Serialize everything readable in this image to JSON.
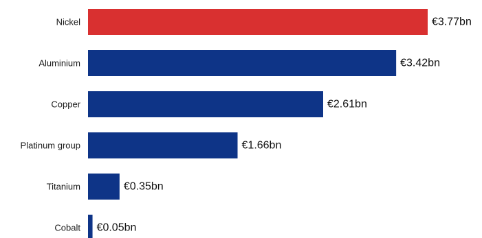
{
  "chart_data": {
    "type": "bar",
    "orientation": "horizontal",
    "categories": [
      "Nickel",
      "Aluminium",
      "Copper",
      "Platinum group",
      "Titanium",
      "Cobalt"
    ],
    "values": [
      3.77,
      3.42,
      2.61,
      1.66,
      0.35,
      0.05
    ],
    "value_labels": [
      "€3.77bn",
      "€3.42bn",
      "€2.61bn",
      "€1.66bn",
      "€0.35bn",
      "€0.05bn"
    ],
    "unit": "€bn",
    "title": "",
    "xlabel": "",
    "ylabel": "",
    "xlim": [
      0,
      3.77
    ],
    "grid": false,
    "legend": "none",
    "colors": {
      "highlight": "#d93030",
      "default": "#0e3487"
    },
    "highlight_index": 0
  }
}
